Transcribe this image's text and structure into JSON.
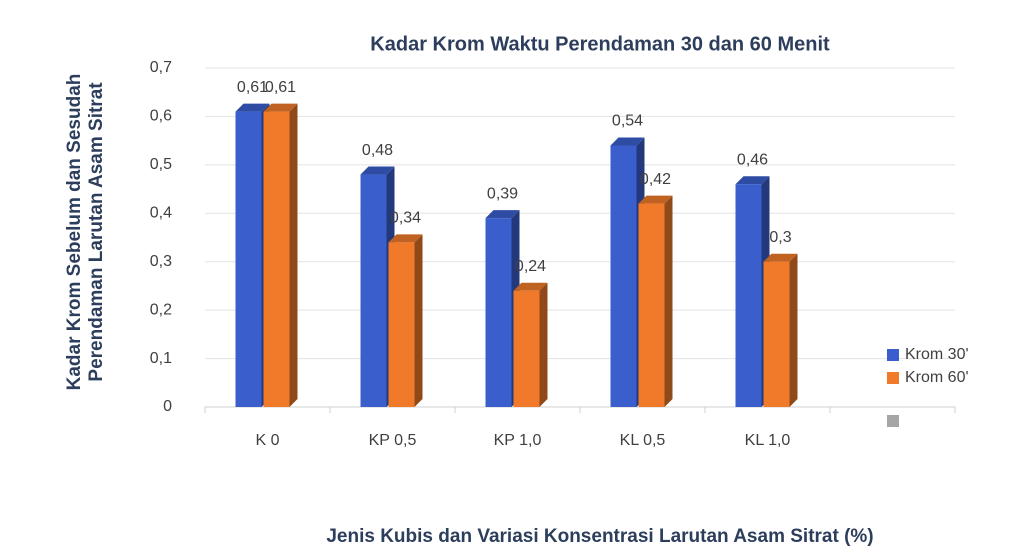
{
  "chart_data": {
    "type": "bar",
    "title": "Kadar Krom Waktu Perendaman 30 dan 60 Menit",
    "y_label_lines": [
      "Kadar Krom Sebelum dan Sesudah",
      "Perendaman  Larutan Asam Sitrat"
    ],
    "x_label": "Jenis Kubis dan Variasi Konsentrasi Larutan Asam Sitrat (%)",
    "categories": [
      "K 0",
      "KP 0,5",
      "KP 1,0",
      "KL 0,5",
      "KL 1,0",
      null
    ],
    "series": [
      {
        "name": "Krom 30'",
        "color": "#3a5fcd",
        "values": [
          0.61,
          0.48,
          0.39,
          0.54,
          0.46,
          null
        ],
        "value_labels": [
          "0,61",
          "0,48",
          "0,39",
          "0,54",
          "0,46",
          null
        ]
      },
      {
        "name": "Krom 60'",
        "color": "#f07a2a",
        "values": [
          0.61,
          0.34,
          0.24,
          0.42,
          0.3,
          null
        ],
        "value_labels": [
          "0,61",
          "0,34",
          "0,24",
          "0,42",
          "0,3",
          null
        ]
      }
    ],
    "ylim": [
      0,
      0.7
    ],
    "yticks": [
      0,
      {
        "value": 0.1,
        "label": "0,1"
      },
      {
        "value": 0.2,
        "label": "0,2"
      },
      {
        "value": 0.3,
        "label": "0,3"
      },
      {
        "value": 0.4,
        "label": "0,4"
      },
      {
        "value": 0.5,
        "label": "0,5"
      },
      {
        "value": 0.6,
        "label": "0,6"
      },
      {
        "value": 0.7,
        "label": "0,7"
      }
    ],
    "grid": true,
    "legend": "right"
  }
}
